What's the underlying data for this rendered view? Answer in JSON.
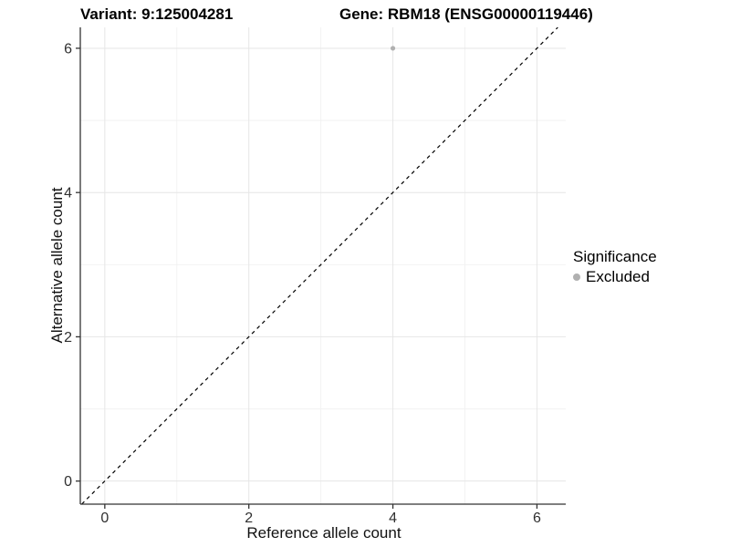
{
  "chart_data": {
    "type": "scatter",
    "title_left": "Variant: 9:125004281",
    "title_right": "Gene: RBM18 (ENSG00000119446)",
    "xlabel": "Reference allele count",
    "ylabel": "Alternative allele count",
    "xlim": [
      -0.34,
      6.4
    ],
    "ylim": [
      -0.32,
      6.29
    ],
    "xticks": [
      0,
      2,
      4,
      6
    ],
    "yticks": [
      0,
      2,
      4,
      6
    ],
    "xminor": [
      1,
      3,
      5
    ],
    "yminor": [
      1,
      3,
      5
    ],
    "grid": true,
    "points": [
      {
        "x": 4,
        "y": 6,
        "series": "Excluded"
      }
    ],
    "identity_line": {
      "slope": 1,
      "intercept": 0,
      "style": "dashed"
    },
    "legend": {
      "title": "Significance",
      "position": "right",
      "entries": [
        {
          "label": "Excluded",
          "color": "#b0b0b0"
        }
      ]
    },
    "colors": {
      "point": "#b0b0b0",
      "axis_line": "#333333",
      "tick_label": "#303030",
      "grid_major": "#e6e6e6",
      "grid_minor": "#f2f2f2",
      "identity_line": "#000000"
    }
  }
}
